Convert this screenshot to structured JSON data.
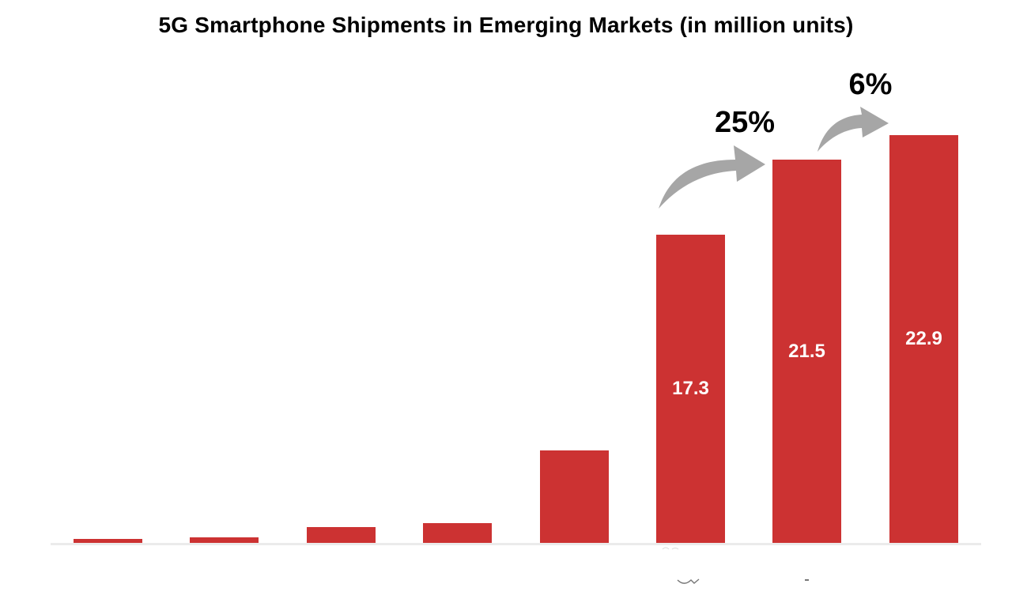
{
  "header": {
    "title": "5G Smartphone Shipments in Emerging Markets (in million units)"
  },
  "chart_data": {
    "type": "bar",
    "title": "5G Smartphone Shipments in Emerging Markets (in million units)",
    "unit": "million units",
    "values": [
      0.2,
      0.3,
      0.9,
      1.1,
      5.2,
      17.3,
      21.5,
      22.9
    ],
    "data_labels": [
      "",
      "",
      "",
      "",
      "",
      "17.3",
      "21.5",
      "22.9"
    ],
    "annotations": [
      {
        "text": "25%",
        "from_bar_index": 5,
        "to_bar_index": 6
      },
      {
        "text": "6%",
        "from_bar_index": 6,
        "to_bar_index": 7
      }
    ],
    "x_axis": {
      "tick_labels_visible": false,
      "baseline_visible": true
    },
    "y_axis": {
      "visible": false,
      "ylim": [
        0,
        23.5
      ]
    },
    "grid": "off",
    "legend": "none",
    "colors": {
      "bar": "#cc3232",
      "value_label": "#ffffff",
      "growth_arrow": "#a6a6a6",
      "baseline": "#ebebeb",
      "title_text": "#000000"
    }
  }
}
